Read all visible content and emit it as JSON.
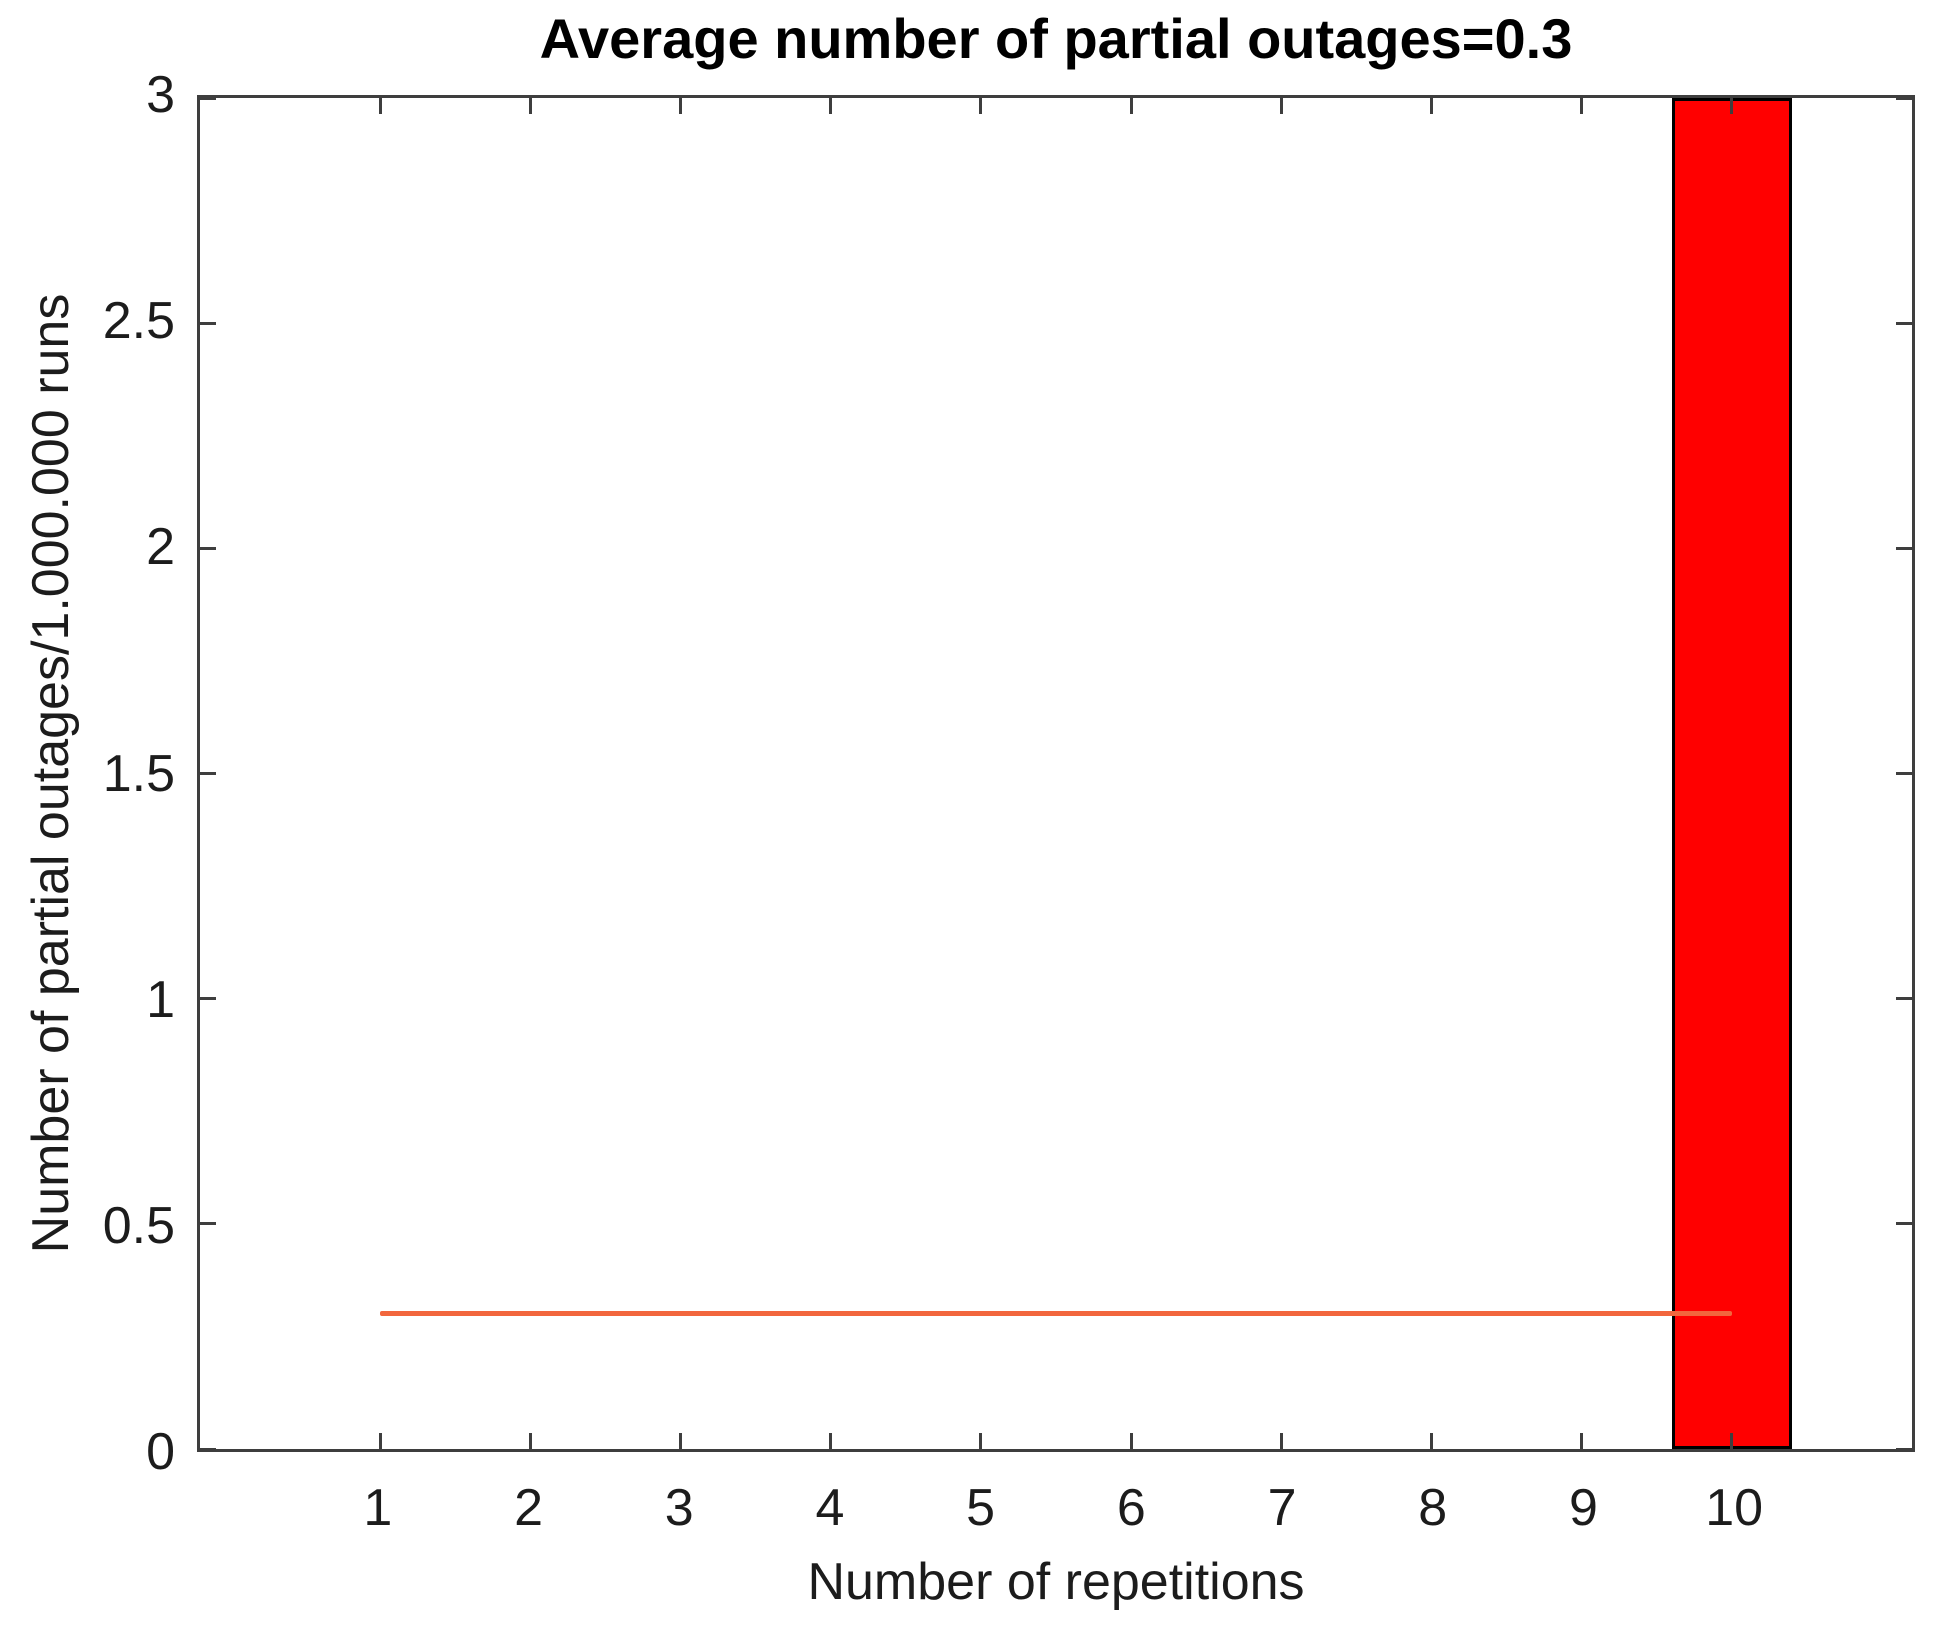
{
  "chart_data": {
    "type": "bar",
    "title": "Average number of partial outages=0.3",
    "xlabel": "Number of repetitions",
    "ylabel": "Number of partial outages/1.000.000 runs",
    "x_ticks": [
      1,
      2,
      3,
      4,
      5,
      6,
      7,
      8,
      9,
      10
    ],
    "x_tick_labels": [
      "1",
      "2",
      "3",
      "4",
      "5",
      "6",
      "7",
      "8",
      "9",
      "10"
    ],
    "y_ticks": [
      0,
      0.5,
      1,
      1.5,
      2,
      2.5,
      3
    ],
    "y_tick_labels": [
      "0",
      "0.5",
      "1",
      "1.5",
      "2",
      "2.5",
      "3"
    ],
    "xlim": [
      -0.2,
      11.2
    ],
    "ylim": [
      0,
      3
    ],
    "grid": false,
    "legend": null,
    "bars": [
      {
        "x": 10,
        "value": 3,
        "bar_width": 0.8,
        "fill": "#ff0000",
        "edge": "#000000"
      }
    ],
    "reference_line": {
      "y": 0.3,
      "x_start": 1,
      "x_end": 10,
      "color": "#f2663d"
    }
  },
  "colors": {
    "background": "#ffffff",
    "axis": "#3e3e3e",
    "text": "#1c1c1c",
    "title_text": "#000000",
    "bar_fill": "#ff0000",
    "bar_edge": "#000000",
    "line": "#f2663d"
  }
}
